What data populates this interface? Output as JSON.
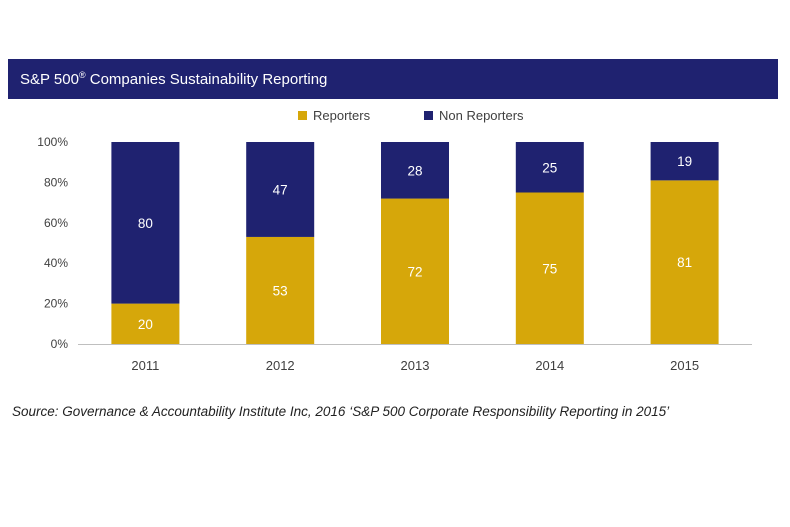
{
  "title": {
    "prefix": "S&P 500",
    "superscript": "®",
    "suffix": " Companies Sustainability Reporting"
  },
  "source": "Source: Governance & Accountability Institute Inc, 2016 ‘S&P 500 Corporate Responsibility Reporting in 2015’",
  "colors": {
    "title_bg": "#1f2270",
    "reporters": "#d6a70a",
    "non_reporters": "#1f2270"
  },
  "chart_data": {
    "type": "bar",
    "stacked": true,
    "categories": [
      "2011",
      "2012",
      "2013",
      "2014",
      "2015"
    ],
    "series": [
      {
        "name": "Reporters",
        "values": [
          20,
          53,
          72,
          75,
          81
        ],
        "color": "#d6a70a"
      },
      {
        "name": "Non Reporters",
        "values": [
          80,
          47,
          28,
          25,
          19
        ],
        "color": "#1f2270"
      }
    ],
    "ylim": [
      0,
      100
    ],
    "yticks": [
      "0%",
      "20%",
      "40%",
      "60%",
      "80%",
      "100%"
    ],
    "grid": false,
    "legend": "top-center"
  }
}
